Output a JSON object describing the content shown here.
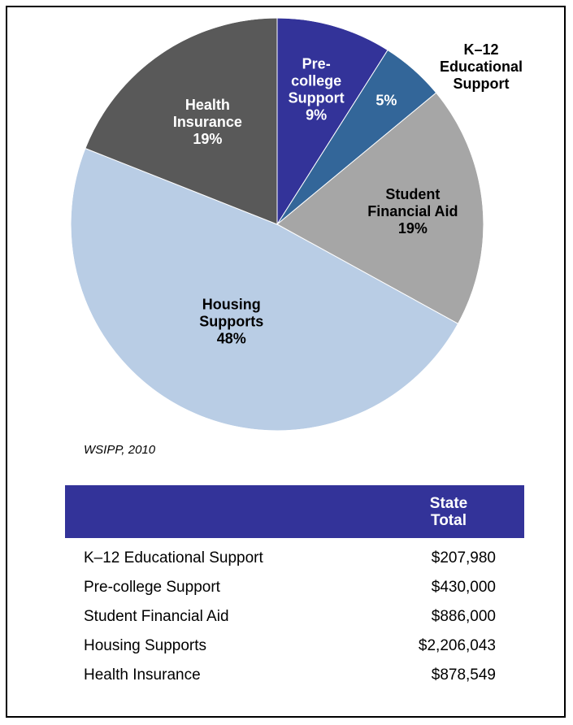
{
  "chart_data": {
    "type": "pie",
    "title": "",
    "slices": [
      {
        "label": "Pre-college Support",
        "value": 9,
        "display": [
          "Pre-",
          "college",
          "Support",
          "9%"
        ],
        "color": "#333399",
        "label_color": "#ffffff"
      },
      {
        "label": "K–12 Educational Support",
        "value": 5,
        "display": [
          "5%"
        ],
        "outer_display": [
          "K–12",
          "Educational",
          "Support"
        ],
        "color": "#336699",
        "label_color": "#ffffff"
      },
      {
        "label": "Student Financial Aid",
        "value": 19,
        "display": [
          "Student",
          "Financial Aid",
          "19%"
        ],
        "color": "#a6a6a6",
        "label_color": "#000000"
      },
      {
        "label": "Housing Supports",
        "value": 48,
        "display": [
          "Housing",
          "Supports",
          "48%"
        ],
        "color": "#b9cde5",
        "label_color": "#000000"
      },
      {
        "label": "Health Insurance",
        "value": 19,
        "display": [
          "Health",
          "Insurance",
          "19%"
        ],
        "color": "#595959",
        "label_color": "#ffffff"
      }
    ]
  },
  "source_note": "WSIPP, 2010",
  "table": {
    "header_fill": "#333399",
    "column_header": [
      "State",
      "Total"
    ],
    "rows": [
      {
        "label": "K–12 Educational Support",
        "value": "$207,980"
      },
      {
        "label": "Pre-college Support",
        "value": "$430,000"
      },
      {
        "label": "Student Financial Aid",
        "value": "$886,000"
      },
      {
        "label": "Housing Supports",
        "value": "$2,206,043"
      },
      {
        "label": "Health Insurance",
        "value": "$878,549"
      }
    ]
  }
}
